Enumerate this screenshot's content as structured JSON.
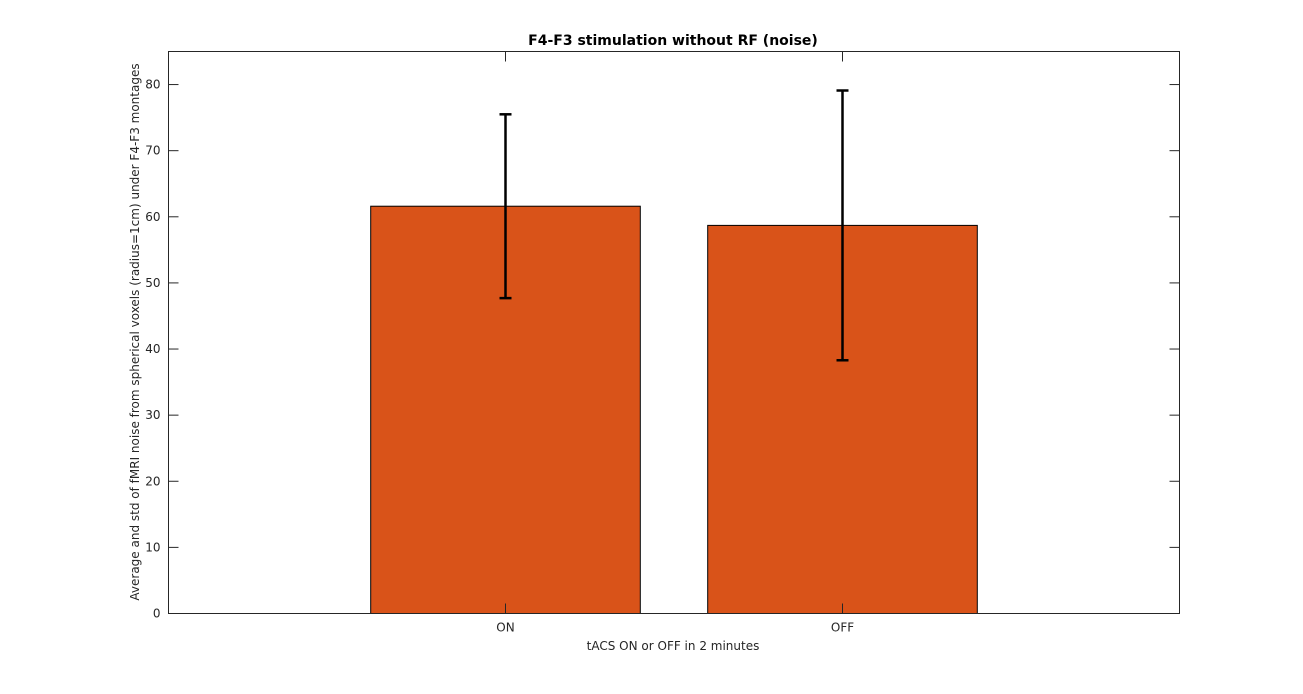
{
  "chart_data": {
    "type": "bar",
    "title": "F4-F3 stimulation without RF (noise)",
    "xlabel": "tACS ON or OFF in 2 minutes",
    "ylabel": "Average and std of fMRI noise from spherical voxels (radius=1cm) under F4-F3 montages",
    "categories": [
      "ON",
      "OFF"
    ],
    "values": [
      61.6,
      58.7
    ],
    "errors": [
      13.9,
      20.4
    ],
    "ylim": [
      0,
      85
    ],
    "yticks": [
      0,
      10,
      20,
      30,
      40,
      50,
      60,
      70,
      80
    ],
    "grid": false,
    "colors": {
      "bar": "#D95319",
      "bar_edge": "#000000",
      "error_bar": "#000000",
      "axes": "#262626"
    }
  }
}
